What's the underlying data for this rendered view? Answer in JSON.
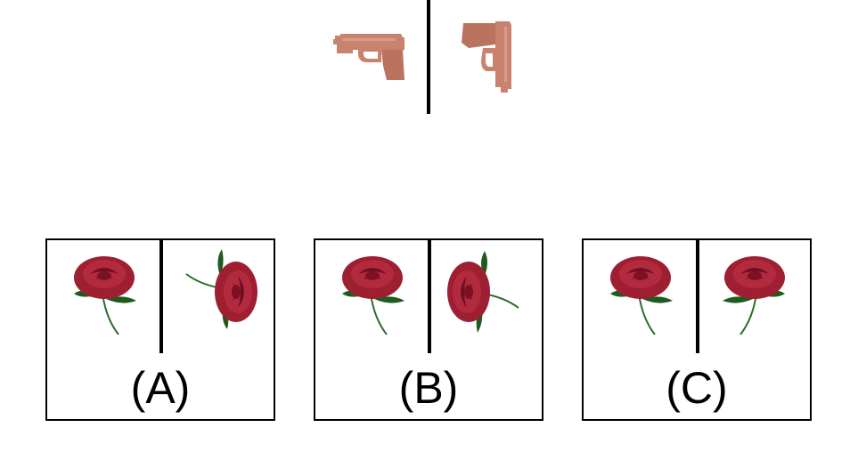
{
  "example": {
    "left_item_icon": "handgun-icon",
    "right_item_icon": "handgun-icon",
    "item_color": "#c8826e"
  },
  "options": [
    {
      "label": "(A)",
      "left_icon": "rose-icon",
      "right_icon": "rose-icon"
    },
    {
      "label": "(B)",
      "left_icon": "rose-icon",
      "right_icon": "rose-icon"
    },
    {
      "label": "(C)",
      "left_icon": "rose-icon",
      "right_icon": "rose-icon"
    }
  ],
  "colors": {
    "rose_petal": "#9e1f32",
    "rose_dark": "#6e0f1f",
    "leaf": "#1f5a1f",
    "stem": "#2e6b2a"
  }
}
